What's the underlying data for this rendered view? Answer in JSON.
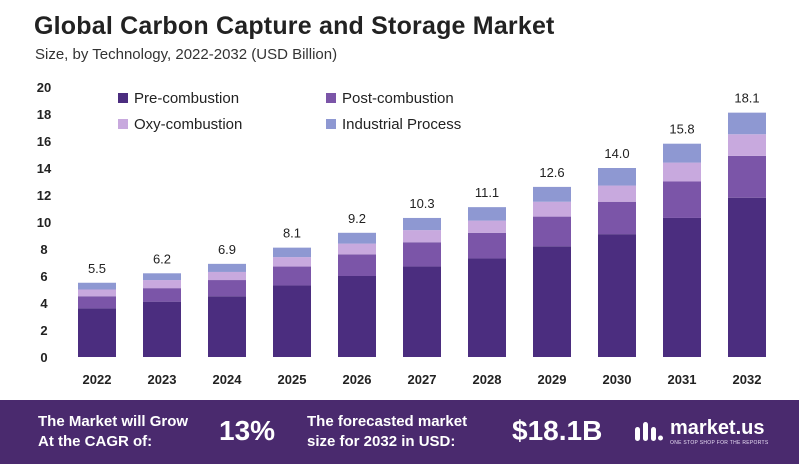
{
  "title": "Global Carbon Capture and Storage Market",
  "subtitle": "Size, by Technology, 2022-2032 (USD Billion)",
  "colors": {
    "pre": "#4b2d7f",
    "post": "#7b55a8",
    "oxy": "#c8a9de",
    "industrial": "#8e98d2",
    "footer": "#4a2a6e"
  },
  "chart_data": {
    "type": "bar",
    "stacked": true,
    "categories": [
      "2022",
      "2023",
      "2024",
      "2025",
      "2026",
      "2027",
      "2028",
      "2029",
      "2030",
      "2031",
      "2032"
    ],
    "totals": [
      5.5,
      6.2,
      6.9,
      8.1,
      9.2,
      10.3,
      11.1,
      12.6,
      14.0,
      15.8,
      18.1
    ],
    "total_labels": [
      "5.5",
      "6.2",
      "6.9",
      "8.1",
      "9.2",
      "10.3",
      "11.1",
      "12.6",
      "14.0",
      "15.8",
      "18.1"
    ],
    "series": [
      {
        "name": "Pre-combustion",
        "color": "#4b2d7f",
        "values": [
          3.6,
          4.1,
          4.5,
          5.3,
          6.0,
          6.7,
          7.3,
          8.2,
          9.1,
          10.3,
          11.8
        ]
      },
      {
        "name": "Post-combustion",
        "color": "#7b55a8",
        "values": [
          0.9,
          1.0,
          1.2,
          1.4,
          1.6,
          1.8,
          1.9,
          2.2,
          2.4,
          2.7,
          3.1
        ]
      },
      {
        "name": "Oxy-combustion",
        "color": "#c8a9de",
        "values": [
          0.5,
          0.6,
          0.6,
          0.7,
          0.8,
          0.9,
          0.9,
          1.1,
          1.2,
          1.4,
          1.6
        ]
      },
      {
        "name": "Industrial Process",
        "color": "#8e98d2",
        "values": [
          0.5,
          0.5,
          0.6,
          0.7,
          0.8,
          0.9,
          1.0,
          1.1,
          1.3,
          1.4,
          1.6
        ]
      }
    ],
    "ylim": [
      0,
      20
    ],
    "yticks": [
      "0",
      "2",
      "4",
      "6",
      "8",
      "10",
      "12",
      "14",
      "16",
      "18",
      "20"
    ],
    "legend_position": "top-left",
    "grid": false
  },
  "footer": {
    "cagr_text_line1": "The Market will Grow",
    "cagr_text_line2": "At the CAGR of:",
    "cagr_value": "13%",
    "forecast_text_line1": "The forecasted market",
    "forecast_text_line2": "size for 2032 in USD:",
    "forecast_value": "$18.1B",
    "brand_name": "market.us",
    "brand_tagline": "ONE STOP SHOP FOR THE REPORTS"
  }
}
